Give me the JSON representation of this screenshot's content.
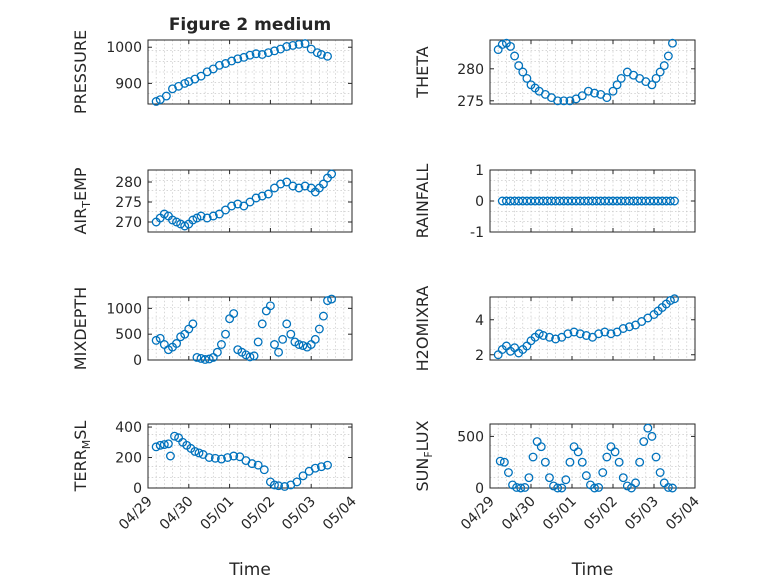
{
  "figure": {
    "title": "Figure 2 medium",
    "xlabel": "Time",
    "x_ticks": [
      "04/29",
      "04/30",
      "05/01",
      "05/02",
      "05/03",
      "05/04"
    ],
    "marker_color": "#0072bd"
  },
  "chart_data": [
    {
      "type": "scatter",
      "marker": "circle",
      "title": "Figure 2 medium",
      "ylabel": "PRESSURE",
      "ylabel_parts": [
        {
          "t": "PRESSURE"
        }
      ],
      "ylim": [
        843,
        1020
      ],
      "yticks": [
        900,
        1000
      ],
      "grid": true,
      "xlim": [
        "04/29",
        "05/04"
      ],
      "series": [
        {
          "x": [
            0.2,
            0.3,
            0.45,
            0.6,
            0.75,
            0.9,
            1.0,
            1.15,
            1.3,
            1.45,
            1.6,
            1.75,
            1.9,
            2.05,
            2.2,
            2.35,
            2.5,
            2.65,
            2.8,
            2.95,
            3.1,
            3.25,
            3.4,
            3.55,
            3.7,
            3.85,
            4.0,
            4.15,
            4.25,
            4.4
          ],
          "y": [
            850,
            855,
            865,
            885,
            892,
            900,
            905,
            912,
            920,
            932,
            940,
            950,
            955,
            962,
            968,
            972,
            978,
            982,
            980,
            985,
            990,
            995,
            1002,
            1005,
            1008,
            1010,
            995,
            985,
            980,
            975
          ]
        }
      ]
    },
    {
      "type": "scatter",
      "marker": "circle",
      "ylabel": "THETA",
      "ylabel_parts": [
        {
          "t": "THETA"
        }
      ],
      "ylim": [
        274.5,
        284.5
      ],
      "yticks": [
        275,
        280
      ],
      "grid": true,
      "xlim": [
        "04/29",
        "05/04"
      ],
      "series": [
        {
          "x": [
            0.2,
            0.3,
            0.4,
            0.5,
            0.6,
            0.7,
            0.8,
            0.9,
            1.0,
            1.1,
            1.2,
            1.35,
            1.5,
            1.65,
            1.8,
            1.95,
            2.1,
            2.25,
            2.4,
            2.55,
            2.7,
            2.85,
            3.0,
            3.1,
            3.2,
            3.35,
            3.5,
            3.65,
            3.8,
            3.95,
            4.05,
            4.15,
            4.25,
            4.35,
            4.45
          ],
          "y": [
            283,
            283.8,
            284,
            283.5,
            282,
            280.5,
            279.5,
            278.5,
            277.5,
            277,
            276.5,
            276,
            275.5,
            275,
            275,
            275,
            275.3,
            275.8,
            276.5,
            276.2,
            276,
            275.5,
            276.5,
            277.5,
            278.5,
            279.5,
            279,
            278.5,
            278,
            277.5,
            278.5,
            279.5,
            280.5,
            282,
            284
          ]
        }
      ]
    },
    {
      "type": "scatter",
      "marker": "circle",
      "ylabel": "AIR_TEMP",
      "ylabel_parts": [
        {
          "t": "AIR"
        },
        {
          "t": "T",
          "sub": true
        },
        {
          "t": "EMP"
        }
      ],
      "ylim": [
        267.5,
        283
      ],
      "yticks": [
        270,
        275,
        280
      ],
      "grid": true,
      "xlim": [
        "04/29",
        "05/04"
      ],
      "series": [
        {
          "x": [
            0.2,
            0.3,
            0.4,
            0.5,
            0.6,
            0.7,
            0.8,
            0.9,
            1.0,
            1.1,
            1.2,
            1.3,
            1.45,
            1.6,
            1.75,
            1.9,
            2.05,
            2.2,
            2.35,
            2.5,
            2.65,
            2.8,
            2.95,
            3.1,
            3.25,
            3.4,
            3.55,
            3.7,
            3.85,
            4.0,
            4.1,
            4.2,
            4.3,
            4.4,
            4.5
          ],
          "y": [
            270,
            271,
            272,
            271.5,
            270.5,
            270,
            269.5,
            269,
            269.5,
            270.5,
            271,
            271.5,
            271,
            271.5,
            272,
            273,
            274,
            274.5,
            274,
            275,
            276,
            276.5,
            277,
            278.5,
            279.5,
            280,
            279,
            278.5,
            279,
            278.5,
            277.5,
            278.5,
            279.5,
            281,
            282
          ]
        }
      ]
    },
    {
      "type": "scatter",
      "marker": "circle",
      "ylabel": "RAINFALL",
      "ylabel_parts": [
        {
          "t": "RAINFALL"
        }
      ],
      "ylim": [
        -1,
        1
      ],
      "yticks": [
        -1,
        0,
        1
      ],
      "grid": true,
      "xlim": [
        "04/29",
        "05/04"
      ],
      "series": [
        {
          "x": [
            0.3,
            0.4,
            0.5,
            0.6,
            0.7,
            0.8,
            0.9,
            1.0,
            1.1,
            1.2,
            1.3,
            1.4,
            1.5,
            1.6,
            1.7,
            1.8,
            1.9,
            2.0,
            2.1,
            2.2,
            2.3,
            2.4,
            2.5,
            2.6,
            2.7,
            2.8,
            2.9,
            3.0,
            3.1,
            3.2,
            3.3,
            3.4,
            3.5,
            3.6,
            3.7,
            3.8,
            3.9,
            4.0,
            4.1,
            4.2,
            4.3,
            4.4,
            4.5
          ],
          "y": [
            0,
            0,
            0,
            0,
            0,
            0,
            0,
            0,
            0,
            0,
            0,
            0,
            0,
            0,
            0,
            0,
            0,
            0,
            0,
            0,
            0,
            0,
            0,
            0,
            0,
            0,
            0,
            0,
            0,
            0,
            0,
            0,
            0,
            0,
            0,
            0,
            0,
            0,
            0,
            0,
            0,
            0,
            0
          ]
        }
      ]
    },
    {
      "type": "scatter",
      "marker": "circle",
      "ylabel": "MIXDEPTH",
      "ylabel_parts": [
        {
          "t": "MIXDEPTH"
        }
      ],
      "ylim": [
        0,
        1220
      ],
      "yticks": [
        0,
        500,
        1000
      ],
      "grid": true,
      "xlim": [
        "04/29",
        "05/04"
      ],
      "series": [
        {
          "x": [
            0.2,
            0.3,
            0.4,
            0.5,
            0.6,
            0.7,
            0.8,
            0.9,
            1.0,
            1.1,
            1.2,
            1.3,
            1.4,
            1.5,
            1.6,
            1.7,
            1.8,
            1.9,
            2.0,
            2.1,
            2.2,
            2.3,
            2.4,
            2.5,
            2.6,
            2.7,
            2.8,
            2.9,
            3.0,
            3.1,
            3.2,
            3.3,
            3.4,
            3.5,
            3.6,
            3.7,
            3.8,
            3.9,
            4.0,
            4.1,
            4.2,
            4.3,
            4.4,
            4.5
          ],
          "y": [
            380,
            420,
            300,
            200,
            250,
            320,
            450,
            500,
            600,
            700,
            50,
            30,
            10,
            20,
            50,
            150,
            300,
            500,
            800,
            900,
            200,
            150,
            100,
            60,
            80,
            350,
            700,
            950,
            1050,
            300,
            150,
            400,
            700,
            500,
            350,
            300,
            280,
            250,
            300,
            400,
            600,
            850,
            1150,
            1180
          ]
        }
      ]
    },
    {
      "type": "scatter",
      "marker": "circle",
      "ylabel": "H2OMIXRA",
      "ylabel_parts": [
        {
          "t": "H2OMIXRA"
        }
      ],
      "ylim": [
        1.7,
        5.3
      ],
      "yticks": [
        2,
        4
      ],
      "grid": true,
      "xlim": [
        "04/29",
        "05/04"
      ],
      "series": [
        {
          "x": [
            0.2,
            0.3,
            0.4,
            0.5,
            0.6,
            0.7,
            0.8,
            0.9,
            1.0,
            1.1,
            1.2,
            1.3,
            1.45,
            1.6,
            1.75,
            1.9,
            2.05,
            2.2,
            2.35,
            2.5,
            2.65,
            2.8,
            2.95,
            3.1,
            3.25,
            3.4,
            3.55,
            3.7,
            3.85,
            4.0,
            4.1,
            4.2,
            4.3,
            4.4,
            4.5
          ],
          "y": [
            2,
            2.3,
            2.5,
            2.2,
            2.4,
            2.1,
            2.3,
            2.5,
            2.8,
            3.0,
            3.2,
            3.1,
            3.0,
            2.9,
            3.0,
            3.2,
            3.3,
            3.2,
            3.1,
            3.0,
            3.2,
            3.3,
            3.2,
            3.3,
            3.5,
            3.6,
            3.7,
            3.9,
            4.1,
            4.3,
            4.5,
            4.7,
            4.9,
            5.1,
            5.2
          ]
        }
      ]
    },
    {
      "type": "scatter",
      "marker": "circle",
      "ylabel": "TERR_MSL",
      "ylabel_parts": [
        {
          "t": "TERR"
        },
        {
          "t": "M",
          "sub": true
        },
        {
          "t": "SL"
        }
      ],
      "ylim": [
        0,
        420
      ],
      "yticks": [
        0,
        200,
        400
      ],
      "grid": true,
      "xlim": [
        "04/29",
        "05/04"
      ],
      "series": [
        {
          "x": [
            0.2,
            0.3,
            0.4,
            0.5,
            0.55,
            0.65,
            0.75,
            0.85,
            0.95,
            1.05,
            1.15,
            1.25,
            1.35,
            1.5,
            1.65,
            1.8,
            1.95,
            2.1,
            2.25,
            2.4,
            2.55,
            2.7,
            2.85,
            3.0,
            3.1,
            3.2,
            3.35,
            3.5,
            3.65,
            3.8,
            3.95,
            4.1,
            4.25,
            4.4
          ],
          "y": [
            270,
            280,
            285,
            290,
            210,
            340,
            330,
            300,
            280,
            260,
            240,
            230,
            220,
            200,
            195,
            190,
            200,
            210,
            205,
            180,
            160,
            150,
            120,
            40,
            20,
            15,
            10,
            20,
            40,
            80,
            110,
            130,
            140,
            150
          ]
        }
      ]
    },
    {
      "type": "scatter",
      "marker": "circle",
      "ylabel": "SUN_FLUX",
      "ylabel_parts": [
        {
          "t": "SUN"
        },
        {
          "t": "F",
          "sub": true
        },
        {
          "t": "LUX"
        }
      ],
      "ylim": [
        0,
        620
      ],
      "yticks": [
        0,
        500
      ],
      "grid": true,
      "xlim": [
        "04/29",
        "05/04"
      ],
      "series": [
        {
          "x": [
            0.25,
            0.35,
            0.45,
            0.55,
            0.65,
            0.75,
            0.85,
            0.95,
            1.05,
            1.15,
            1.25,
            1.35,
            1.45,
            1.55,
            1.65,
            1.75,
            1.85,
            1.95,
            2.05,
            2.15,
            2.25,
            2.35,
            2.45,
            2.55,
            2.65,
            2.75,
            2.85,
            2.95,
            3.05,
            3.15,
            3.25,
            3.35,
            3.45,
            3.55,
            3.65,
            3.75,
            3.85,
            3.95,
            4.05,
            4.15,
            4.25,
            4.35,
            4.45
          ],
          "y": [
            260,
            250,
            150,
            30,
            5,
            0,
            5,
            100,
            300,
            450,
            400,
            250,
            100,
            20,
            0,
            0,
            80,
            250,
            400,
            350,
            250,
            120,
            30,
            0,
            5,
            150,
            300,
            400,
            350,
            250,
            100,
            20,
            0,
            50,
            250,
            450,
            580,
            500,
            300,
            150,
            50,
            5,
            0
          ]
        }
      ]
    }
  ]
}
